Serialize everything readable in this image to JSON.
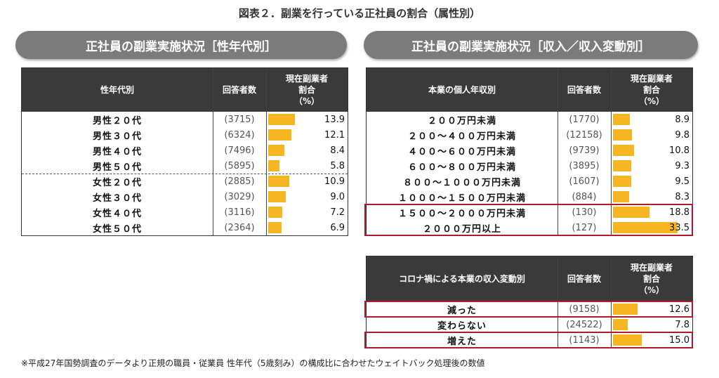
{
  "figure_title": "図表２．副業を行っている正社員の割合（属性別）",
  "footnote": "※平成27年国勢調査のデータより正規の職員・従業員 性年代（5歳刻み）の構成比に合わせたウェイトバック処理後の数値",
  "colors": {
    "bar": "#f5b622",
    "header": "#3a3a3a",
    "highlight": "#b01a2a",
    "panel_title": "#7b7b7b"
  },
  "chart_data": [
    {
      "type": "bar",
      "panel_title": "正社員の副業実施状況［性年代別］",
      "category_header": "性年代別",
      "count_header": "回答者数",
      "value_header": [
        "現在副業者",
        "割合",
        "（%）"
      ],
      "categories": [
        "男性２０代",
        "男性３０代",
        "男性４０代",
        "男性５０代",
        "女性２０代",
        "女性３０代",
        "女性４０代",
        "女性５０代"
      ],
      "counts": [
        "(3715)",
        "(6324)",
        "(7496)",
        "(5895)",
        "(2885)",
        "(3029)",
        "(3116)",
        "(2364)"
      ],
      "values": [
        13.9,
        12.1,
        8.4,
        5.8,
        10.9,
        9.0,
        7.2,
        6.9
      ],
      "value_labels": [
        "13.9",
        "12.1",
        "8.4",
        "5.8",
        "10.9",
        "9.0",
        "7.2",
        "6.9"
      ]
    },
    {
      "type": "bar",
      "panel_title": "正社員の副業実施状況［収入／収入変動別］",
      "category_header": "本業の個人年収別",
      "count_header": "回答者数",
      "value_header": [
        "現在副業者",
        "割合",
        "（%）"
      ],
      "categories": [
        "２００万円未満",
        "２００～４００万円未満",
        "４００～６００万円未満",
        "６００～８００万円未満",
        "８００～１０００万円未満",
        "１０００～１５００万円未満",
        "１５００～２０００万円未満",
        "２０００万円以上"
      ],
      "counts": [
        "(1770)",
        "(12158)",
        "(9739)",
        "(3895)",
        "(1607)",
        "(884)",
        "(130)",
        "(127)"
      ],
      "values": [
        8.9,
        9.8,
        10.8,
        9.3,
        9.5,
        8.3,
        18.8,
        33.5
      ],
      "value_labels": [
        "8.9",
        "9.8",
        "10.8",
        "9.3",
        "9.5",
        "8.3",
        "18.8",
        "33.5"
      ],
      "highlighted": [
        6,
        7
      ]
    },
    {
      "type": "bar",
      "category_header": "コロナ禍による本業の収入変動別",
      "count_header": "回答者数",
      "value_header": [
        "現在副業者",
        "割合",
        "（%）"
      ],
      "categories": [
        "減った",
        "変わらない",
        "増えた"
      ],
      "counts": [
        "(9158)",
        "(24522)",
        "(1143)"
      ],
      "values": [
        12.6,
        7.8,
        15.0
      ],
      "value_labels": [
        "12.6",
        "7.8",
        "15.0"
      ],
      "highlighted": [
        0,
        2
      ]
    }
  ]
}
